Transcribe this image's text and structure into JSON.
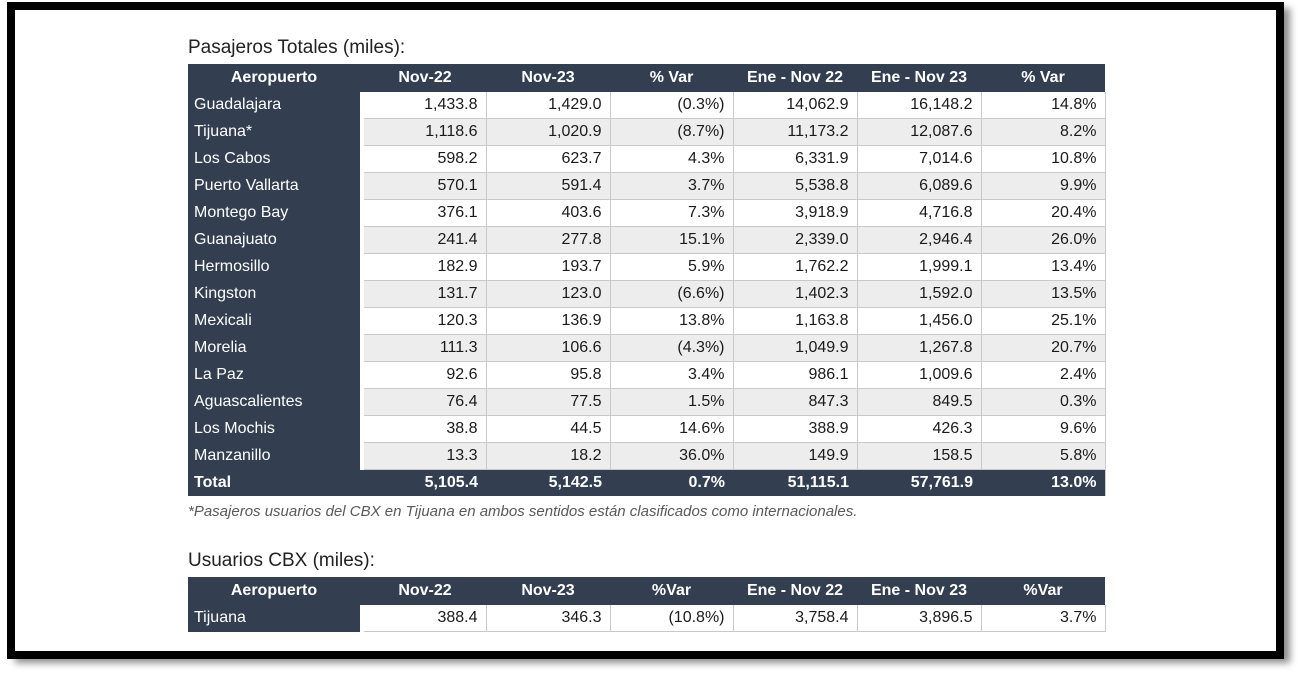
{
  "colors": {
    "header_bg": "#333F50",
    "row_stripe": "#EDEDED",
    "grid_line": "#C9C9C9",
    "header_text": "#FFFFFF",
    "body_text": "#1A1A1A",
    "footnote_text": "#595959",
    "frame_border": "#000000"
  },
  "table1": {
    "title": "Pasajeros Totales (miles):",
    "headers": [
      "Aeropuerto",
      "Nov-22",
      "Nov-23",
      "% Var",
      "Ene - Nov 22",
      "Ene - Nov 23",
      "% Var"
    ],
    "rows": [
      {
        "name": "Guadalajara",
        "values": [
          "1,433.8",
          "1,429.0",
          "(0.3%)",
          "14,062.9",
          "16,148.2",
          "14.8%"
        ]
      },
      {
        "name": "Tijuana*",
        "values": [
          "1,118.6",
          "1,020.9",
          "(8.7%)",
          "11,173.2",
          "12,087.6",
          "8.2%"
        ]
      },
      {
        "name": "Los Cabos",
        "values": [
          "598.2",
          "623.7",
          "4.3%",
          "6,331.9",
          "7,014.6",
          "10.8%"
        ]
      },
      {
        "name": "Puerto Vallarta",
        "values": [
          "570.1",
          "591.4",
          "3.7%",
          "5,538.8",
          "6,089.6",
          "9.9%"
        ]
      },
      {
        "name": "Montego Bay",
        "values": [
          "376.1",
          "403.6",
          "7.3%",
          "3,918.9",
          "4,716.8",
          "20.4%"
        ]
      },
      {
        "name": "Guanajuato",
        "values": [
          "241.4",
          "277.8",
          "15.1%",
          "2,339.0",
          "2,946.4",
          "26.0%"
        ]
      },
      {
        "name": "Hermosillo",
        "values": [
          "182.9",
          "193.7",
          "5.9%",
          "1,762.2",
          "1,999.1",
          "13.4%"
        ]
      },
      {
        "name": "Kingston",
        "values": [
          "131.7",
          "123.0",
          "(6.6%)",
          "1,402.3",
          "1,592.0",
          "13.5%"
        ]
      },
      {
        "name": "Mexicali",
        "values": [
          "120.3",
          "136.9",
          "13.8%",
          "1,163.8",
          "1,456.0",
          "25.1%"
        ]
      },
      {
        "name": "Morelia",
        "values": [
          "111.3",
          "106.6",
          "(4.3%)",
          "1,049.9",
          "1,267.8",
          "20.7%"
        ]
      },
      {
        "name": "La Paz",
        "values": [
          "92.6",
          "95.8",
          "3.4%",
          "986.1",
          "1,009.6",
          "2.4%"
        ]
      },
      {
        "name": "Aguascalientes",
        "values": [
          "76.4",
          "77.5",
          "1.5%",
          "847.3",
          "849.5",
          "0.3%"
        ]
      },
      {
        "name": "Los Mochis",
        "values": [
          "38.8",
          "44.5",
          "14.6%",
          "388.9",
          "426.3",
          "9.6%"
        ]
      },
      {
        "name": "Manzanillo",
        "values": [
          "13.3",
          "18.2",
          "36.0%",
          "149.9",
          "158.5",
          "5.8%"
        ]
      }
    ],
    "total": {
      "name": "Total",
      "values": [
        "5,105.4",
        "5,142.5",
        "0.7%",
        "51,115.1",
        "57,761.9",
        "13.0%"
      ]
    },
    "footnote": "*Pasajeros usuarios del CBX en Tijuana en ambos sentidos están clasificados como internacionales."
  },
  "table2": {
    "title": "Usuarios CBX (miles):",
    "headers": [
      "Aeropuerto",
      "Nov-22",
      "Nov-23",
      "%Var",
      "Ene - Nov 22",
      "Ene - Nov 23",
      "%Var"
    ],
    "rows": [
      {
        "name": "Tijuana",
        "values": [
          "388.4",
          "346.3",
          "(10.8%)",
          "3,758.4",
          "3,896.5",
          "3.7%"
        ]
      }
    ],
    "total": null,
    "footnote": null
  }
}
